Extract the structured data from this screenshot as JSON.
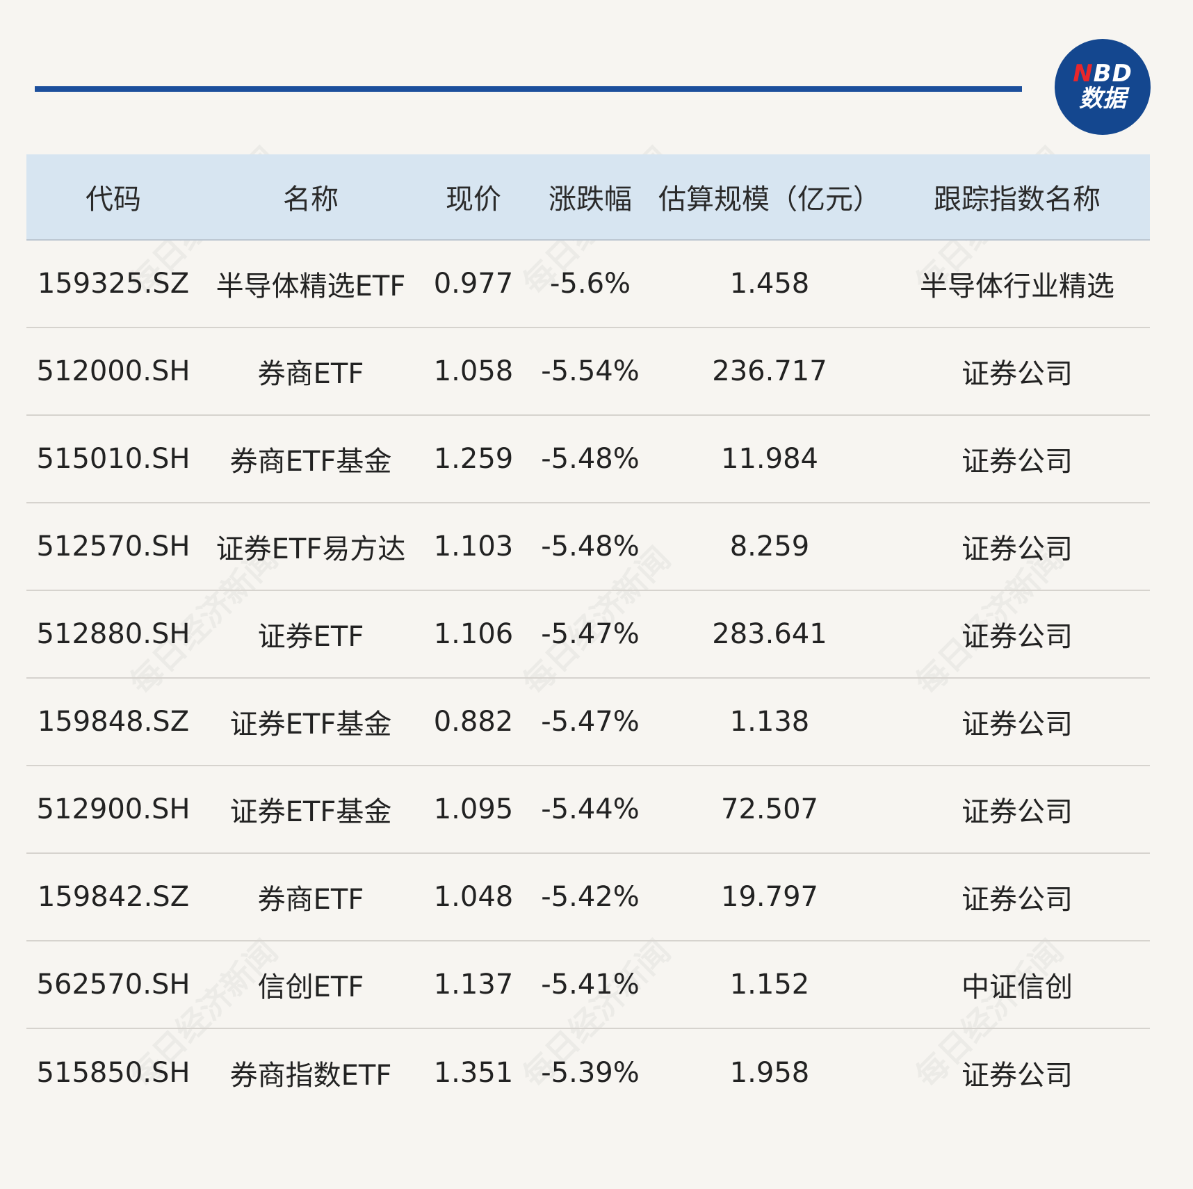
{
  "logo": {
    "line1_n": "N",
    "line1_rest": "BD",
    "line2": "数据"
  },
  "watermark_text": "每日经济新闻",
  "table": {
    "headers": [
      "代码",
      "名称",
      "现价",
      "涨跌幅",
      "估算规模（亿元）",
      "跟踪指数名称"
    ],
    "rows": [
      [
        "159325.SZ",
        "半导体精选ETF",
        "0.977",
        "-5.6%",
        "1.458",
        "半导体行业精选"
      ],
      [
        "512000.SH",
        "券商ETF",
        "1.058",
        "-5.54%",
        "236.717",
        "证券公司"
      ],
      [
        "515010.SH",
        "券商ETF基金",
        "1.259",
        "-5.48%",
        "11.984",
        "证券公司"
      ],
      [
        "512570.SH",
        "证券ETF易方达",
        "1.103",
        "-5.48%",
        "8.259",
        "证券公司"
      ],
      [
        "512880.SH",
        "证券ETF",
        "1.106",
        "-5.47%",
        "283.641",
        "证券公司"
      ],
      [
        "159848.SZ",
        "证券ETF基金",
        "0.882",
        "-5.47%",
        "1.138",
        "证券公司"
      ],
      [
        "512900.SH",
        "证券ETF基金",
        "1.095",
        "-5.44%",
        "72.507",
        "证券公司"
      ],
      [
        "159842.SZ",
        "券商ETF",
        "1.048",
        "-5.42%",
        "19.797",
        "证券公司"
      ],
      [
        "562570.SH",
        "信创ETF",
        "1.137",
        "-5.41%",
        "1.152",
        "中证信创"
      ],
      [
        "515850.SH",
        "券商指数ETF",
        "1.351",
        "-5.39%",
        "1.958",
        "证券公司"
      ]
    ]
  }
}
